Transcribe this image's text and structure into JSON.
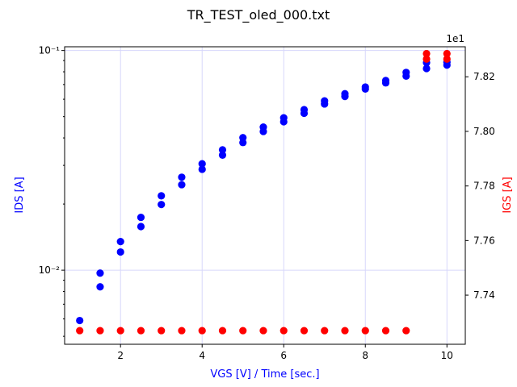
{
  "chart_data": {
    "type": "scatter",
    "title": "TR_TEST_oled_000.txt",
    "xlabel": "VGS [V] / Time [sec.]",
    "ylabel_left": "IDS [A]",
    "ylabel_right": "IGS [A]",
    "left_axis_scale": "log",
    "right_axis_offset_label": "1e1",
    "xlim": [
      0.63,
      10.45
    ],
    "ylim_left": [
      0.0046,
      0.104
    ],
    "ylim_right": [
      7.722,
      7.831
    ],
    "x_ticks": [
      2,
      4,
      6,
      8,
      10
    ],
    "x_tick_labels": [
      "2",
      "4",
      "6",
      "8",
      "10"
    ],
    "left_ticks": [
      0.01,
      0.1
    ],
    "left_tick_labels": [
      "10⁻²",
      "10⁻¹"
    ],
    "right_ticks": [
      7.74,
      7.76,
      7.78,
      7.8,
      7.82
    ],
    "right_tick_labels": [
      "7.74",
      "7.76",
      "7.78",
      "7.80",
      "7.82"
    ],
    "colors": {
      "ids": "#0000ff",
      "igs": "#ff0000",
      "grid": "#d7d7fb"
    },
    "series": [
      {
        "name": "IDS",
        "axis": "left",
        "color": "#0000ff",
        "x": [
          1,
          1.5,
          1.5,
          2,
          2,
          2.5,
          2.5,
          3,
          3,
          3.5,
          3.5,
          4,
          4,
          4.5,
          4.5,
          5,
          5,
          5.5,
          5.5,
          6,
          6,
          6.5,
          6.5,
          7,
          7,
          7.5,
          7.5,
          8,
          8,
          8.5,
          8.5,
          9,
          9,
          9.5,
          9.5,
          10,
          10
        ],
        "values": [
          0.0059,
          0.0084,
          0.0097,
          0.0121,
          0.0135,
          0.0158,
          0.0174,
          0.0199,
          0.0218,
          0.0245,
          0.0265,
          0.0288,
          0.0305,
          0.0334,
          0.0353,
          0.0381,
          0.0401,
          0.0428,
          0.0448,
          0.0474,
          0.0494,
          0.0518,
          0.0538,
          0.0571,
          0.059,
          0.0618,
          0.0636,
          0.0668,
          0.0682,
          0.0712,
          0.073,
          0.0765,
          0.0795,
          0.0828,
          0.088,
          0.0858,
          0.0885
        ]
      },
      {
        "name": "IGS",
        "axis": "right",
        "color": "#ff0000",
        "x": [
          1,
          1.5,
          2,
          2.5,
          3,
          3.5,
          4,
          4.5,
          5,
          5.5,
          6,
          6.5,
          7,
          7.5,
          8,
          8.5,
          9,
          9.5,
          9.5,
          10,
          10
        ],
        "values": [
          7.727,
          7.727,
          7.727,
          7.727,
          7.727,
          7.727,
          7.727,
          7.727,
          7.727,
          7.727,
          7.727,
          7.727,
          7.727,
          7.727,
          7.727,
          7.727,
          7.727,
          7.8265,
          7.8285,
          7.8265,
          7.8285
        ]
      }
    ]
  }
}
